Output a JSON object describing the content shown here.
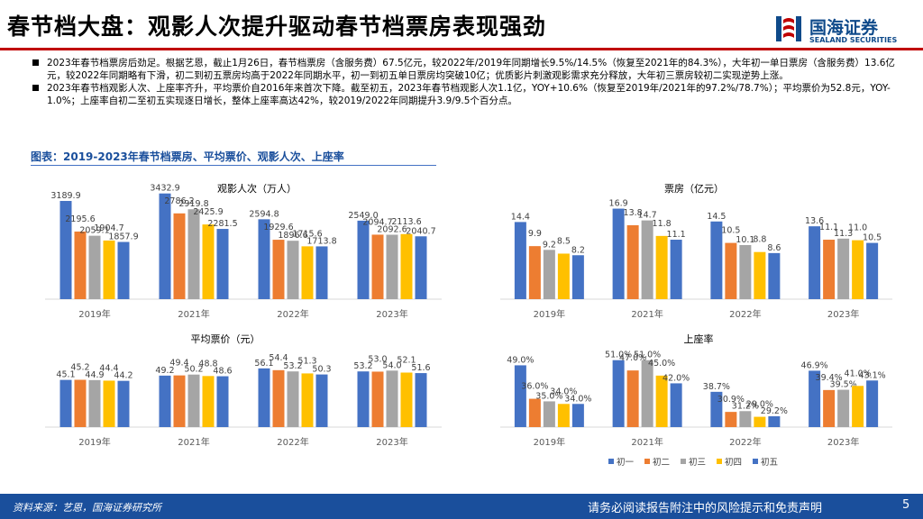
{
  "header": {
    "title": "春节档大盘：观影人次提升驱动春节档票房表现强劲",
    "logo_cn": "国海证券",
    "logo_en": "SEALAND SECURITIES"
  },
  "bullets": [
    "2023年春节档票房后劲足。根据艺恩，截止1月26日，春节档票房（含服务费）67.5亿元，较2022年/2019年同期增长9.5%/14.5%（恢复至2021年的84.3%），大年初一单日票房（含服务费）13.6亿元，较2022年同期略有下滑，初二到初五票房均高于2022年同期水平，初一到初五单日票房均突破10亿；优质影片刺激观影需求充分释放，大年初三票房较初二实现逆势上涨。",
    "2023年春节档观影人次、上座率齐升，平均票价自2016年来首次下降。截至初五，2023年春节档观影人次1.1亿，YOY+10.6%（恢复至2019年/2021年的97.2%/78.7%）；平均票价为52.8元，YOY-1.0%；上座率自初二至初五实现逐日增长，整体上座率高达42%，较2019/2022年同期提升3.9/9.5个百分点。"
  ],
  "figure_caption": "图表：2019-2023年春节档票房、平均票价、观影人次、上座率",
  "footer": {
    "source": "资料来源：艺恩，国海证券研究所",
    "disclaimer": "请务必阅读报告附注中的风险提示和免责声明",
    "page": "5"
  },
  "colors": {
    "series": [
      "#4472C4",
      "#ED7D31",
      "#A5A5A5",
      "#FFC000",
      "#4472C4"
    ],
    "accent": "#1A4F9C",
    "title_rule": "#C00000"
  },
  "chart_data": [
    {
      "type": "bar",
      "title": "观影人次（万人）",
      "categories": [
        "2019年",
        "2021年",
        "2022年",
        "2023年"
      ],
      "series": [
        {
          "name": "初一",
          "values": [
            3189.9,
            3432.9,
            2594.8,
            2549.0
          ]
        },
        {
          "name": "初二",
          "values": [
            2195.6,
            2786.2,
            1929.6,
            2094.7
          ]
        },
        {
          "name": "初三",
          "values": [
            2059.1,
            2919.8,
            1896.6,
            2092.6
          ]
        },
        {
          "name": "初四",
          "values": [
            1904.7,
            2425.9,
            1715.6,
            2113.6
          ]
        },
        {
          "name": "初五",
          "values": [
            1857.9,
            2281.5,
            1713.8,
            2040.7
          ]
        }
      ],
      "ylim": [
        0,
        3600
      ],
      "grid": false
    },
    {
      "type": "bar",
      "title": "票房（亿元）",
      "categories": [
        "2019年",
        "2021年",
        "2022年",
        "2023年"
      ],
      "series": [
        {
          "name": "初一",
          "values": [
            14.4,
            16.9,
            14.5,
            13.6
          ]
        },
        {
          "name": "初二",
          "values": [
            9.9,
            13.8,
            10.5,
            11.1
          ]
        },
        {
          "name": "初三",
          "values": [
            9.2,
            14.7,
            10.1,
            11.3
          ]
        },
        {
          "name": "初四",
          "values": [
            8.5,
            11.8,
            8.8,
            11.0
          ]
        },
        {
          "name": "初五",
          "values": [
            8.2,
            11.1,
            8.6,
            10.5
          ]
        }
      ],
      "ylim": [
        0,
        18
      ],
      "grid": false
    },
    {
      "type": "bar",
      "title": "平均票价（元）",
      "categories": [
        "2019年",
        "2021年",
        "2022年",
        "2023年"
      ],
      "series": [
        {
          "name": "初一",
          "values": [
            45.1,
            49.2,
            56.1,
            53.2
          ]
        },
        {
          "name": "初二",
          "values": [
            45.2,
            49.4,
            54.4,
            53.0
          ]
        },
        {
          "name": "初三",
          "values": [
            44.9,
            50.2,
            53.2,
            54.0
          ]
        },
        {
          "name": "初四",
          "values": [
            44.4,
            48.8,
            51.3,
            52.1
          ]
        },
        {
          "name": "初五",
          "values": [
            44.2,
            48.6,
            50.3,
            51.6
          ]
        }
      ],
      "ylim": [
        0,
        62
      ],
      "grid": false
    },
    {
      "type": "bar",
      "title": "上座率",
      "categories": [
        "2019年",
        "2021年",
        "2022年",
        "2023年"
      ],
      "series": [
        {
          "name": "初一",
          "values": [
            49.0,
            51.0,
            38.7,
            46.9
          ]
        },
        {
          "name": "初二",
          "values": [
            36.0,
            47.0,
            30.9,
            39.4
          ]
        },
        {
          "name": "初三",
          "values": [
            35.0,
            51.0,
            31.2,
            39.5
          ]
        },
        {
          "name": "初四",
          "values": [
            34.0,
            45.0,
            29.0,
            41.0
          ]
        },
        {
          "name": "初五",
          "values": [
            34.0,
            42.0,
            29.2,
            43.1
          ]
        }
      ],
      "value_suffix": "%",
      "ylim": [
        25,
        53
      ],
      "grid": false,
      "legend_position": "bottom"
    }
  ]
}
